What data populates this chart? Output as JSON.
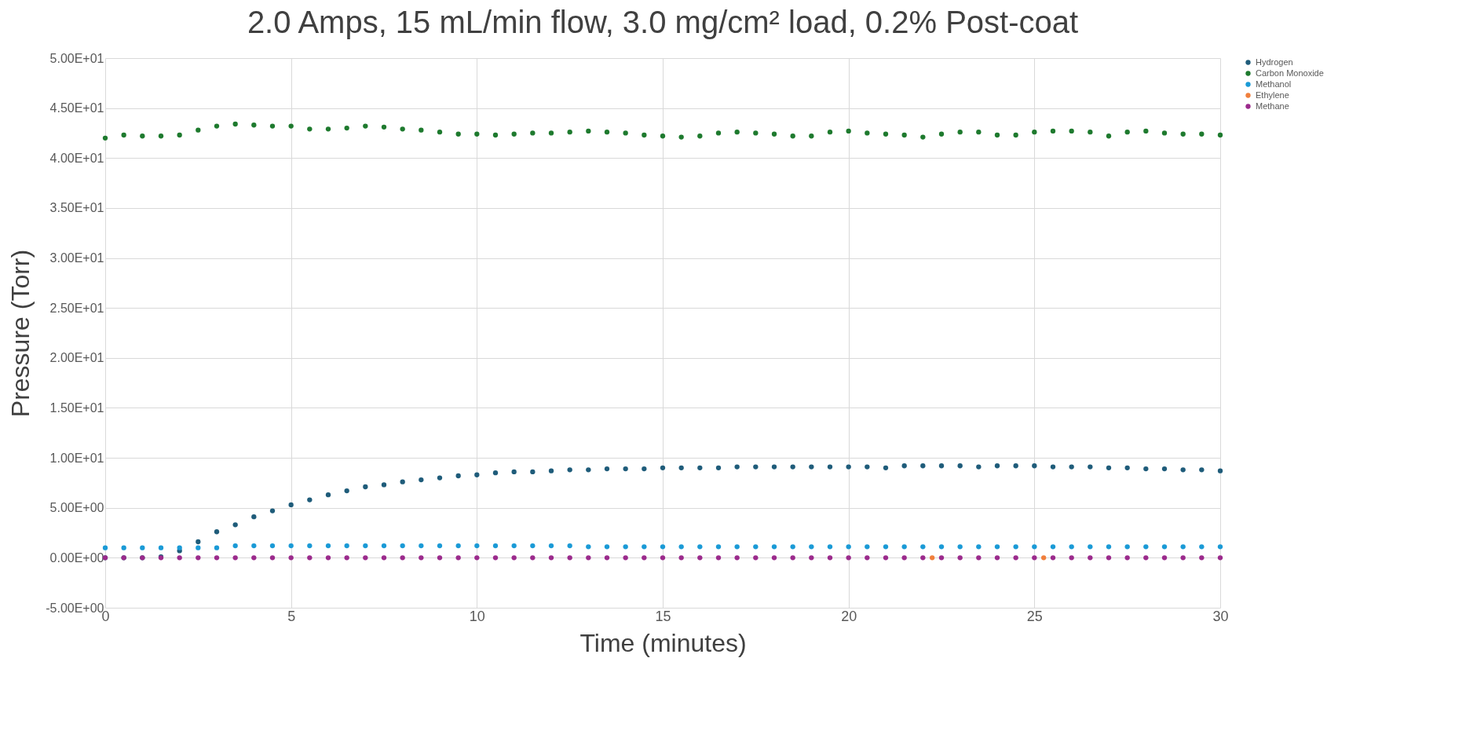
{
  "chart_data": {
    "type": "scatter",
    "title": "2.0 Amps, 15 mL/min flow, 3.0 mg/cm² load, 0.2% Post-coat",
    "xlabel": "Time (minutes)",
    "ylabel": "Pressure (Torr)",
    "x": [
      0,
      0.5,
      1,
      1.5,
      2,
      2.5,
      3,
      3.5,
      4,
      4.5,
      5,
      5.5,
      6,
      6.5,
      7,
      7.5,
      8,
      8.5,
      9,
      9.5,
      10,
      10.5,
      11,
      11.5,
      12,
      12.5,
      13,
      13.5,
      14,
      14.5,
      15,
      15.5,
      16,
      16.5,
      17,
      17.5,
      18,
      18.5,
      19,
      19.5,
      20,
      20.5,
      21,
      21.5,
      22,
      22.5,
      23,
      23.5,
      24,
      24.5,
      25,
      25.5,
      26,
      26.5,
      27,
      27.5,
      28,
      28.5,
      29,
      29.5,
      30
    ],
    "series": [
      {
        "name": "Hydrogen",
        "color": "#1f5c7a",
        "values": [
          0,
          0,
          0,
          0.1,
          0.7,
          1.6,
          2.6,
          3.3,
          4.1,
          4.7,
          5.3,
          5.8,
          6.3,
          6.7,
          7.1,
          7.3,
          7.6,
          7.8,
          8.0,
          8.2,
          8.3,
          8.5,
          8.6,
          8.6,
          8.7,
          8.8,
          8.8,
          8.9,
          8.9,
          8.9,
          9.0,
          9.0,
          9.0,
          9.0,
          9.1,
          9.1,
          9.1,
          9.1,
          9.1,
          9.1,
          9.1,
          9.1,
          9.0,
          9.2,
          9.2,
          9.2,
          9.2,
          9.1,
          9.2,
          9.2,
          9.2,
          9.1,
          9.1,
          9.1,
          9.0,
          9.0,
          8.9,
          8.9,
          8.8,
          8.8,
          8.7
        ]
      },
      {
        "name": "Carbon Monoxide",
        "color": "#1e7a2e",
        "values": [
          42.0,
          42.3,
          42.2,
          42.2,
          42.3,
          42.8,
          43.2,
          43.4,
          43.3,
          43.2,
          43.2,
          42.9,
          42.9,
          43.0,
          43.2,
          43.1,
          42.9,
          42.8,
          42.6,
          42.4,
          42.4,
          42.3,
          42.4,
          42.5,
          42.5,
          42.6,
          42.7,
          42.6,
          42.5,
          42.3,
          42.2,
          42.1,
          42.2,
          42.5,
          42.6,
          42.5,
          42.4,
          42.2,
          42.2,
          42.6,
          42.7,
          42.5,
          42.4,
          42.3,
          42.1,
          42.4,
          42.6,
          42.6,
          42.3,
          42.3,
          42.6,
          42.7,
          42.7,
          42.6,
          42.2,
          42.6,
          42.7,
          42.5,
          42.4,
          42.4,
          42.3
        ]
      },
      {
        "name": "Methanol",
        "color": "#1a9ad6",
        "values": [
          1.0,
          1.0,
          1.0,
          1.0,
          1.0,
          1.0,
          1.0,
          1.2,
          1.2,
          1.2,
          1.2,
          1.2,
          1.2,
          1.2,
          1.2,
          1.2,
          1.2,
          1.2,
          1.2,
          1.2,
          1.2,
          1.2,
          1.2,
          1.2,
          1.2,
          1.2,
          1.1,
          1.1,
          1.1,
          1.1,
          1.1,
          1.1,
          1.1,
          1.1,
          1.1,
          1.1,
          1.1,
          1.1,
          1.1,
          1.1,
          1.1,
          1.1,
          1.1,
          1.1,
          1.1,
          1.1,
          1.1,
          1.1,
          1.1,
          1.1,
          1.1,
          1.1,
          1.1,
          1.1,
          1.1,
          1.1,
          1.1,
          1.1,
          1.1,
          1.1,
          1.1
        ]
      },
      {
        "name": "Ethylene",
        "color": "#f07f3c",
        "x": [
          22.25,
          25.25
        ],
        "values": [
          0,
          0
        ]
      },
      {
        "name": "Methane",
        "color": "#9b2a8c",
        "values": [
          0,
          0,
          0,
          0,
          0,
          0,
          0,
          0,
          0,
          0,
          0,
          0,
          0,
          0,
          0,
          0,
          0,
          0,
          0,
          0,
          0,
          0,
          0,
          0,
          0,
          0,
          0,
          0,
          0,
          0,
          0,
          0,
          0,
          0,
          0,
          0,
          0,
          0,
          0,
          0,
          0,
          0,
          0,
          0,
          0,
          0,
          0,
          0,
          0,
          0,
          0,
          0,
          0,
          0,
          0,
          0,
          0,
          0,
          0,
          0,
          0
        ]
      }
    ],
    "xlim": [
      0,
      30
    ],
    "xticks": [
      0,
      5,
      10,
      15,
      20,
      25,
      30
    ],
    "ylim": [
      -5,
      50
    ],
    "yticks": [
      {
        "value": -5,
        "label": "-5.00E+00"
      },
      {
        "value": 0,
        "label": "0.00E+00"
      },
      {
        "value": 5,
        "label": "5.00E+00"
      },
      {
        "value": 10,
        "label": "1.00E+01"
      },
      {
        "value": 15,
        "label": "1.50E+01"
      },
      {
        "value": 20,
        "label": "2.00E+01"
      },
      {
        "value": 25,
        "label": "2.50E+01"
      },
      {
        "value": 30,
        "label": "3.00E+01"
      },
      {
        "value": 35,
        "label": "3.50E+01"
      },
      {
        "value": 40,
        "label": "4.00E+01"
      },
      {
        "value": 45,
        "label": "4.50E+01"
      },
      {
        "value": 50,
        "label": "5.00E+01"
      }
    ],
    "grid": true,
    "legend": "right",
    "marker": "circle"
  }
}
